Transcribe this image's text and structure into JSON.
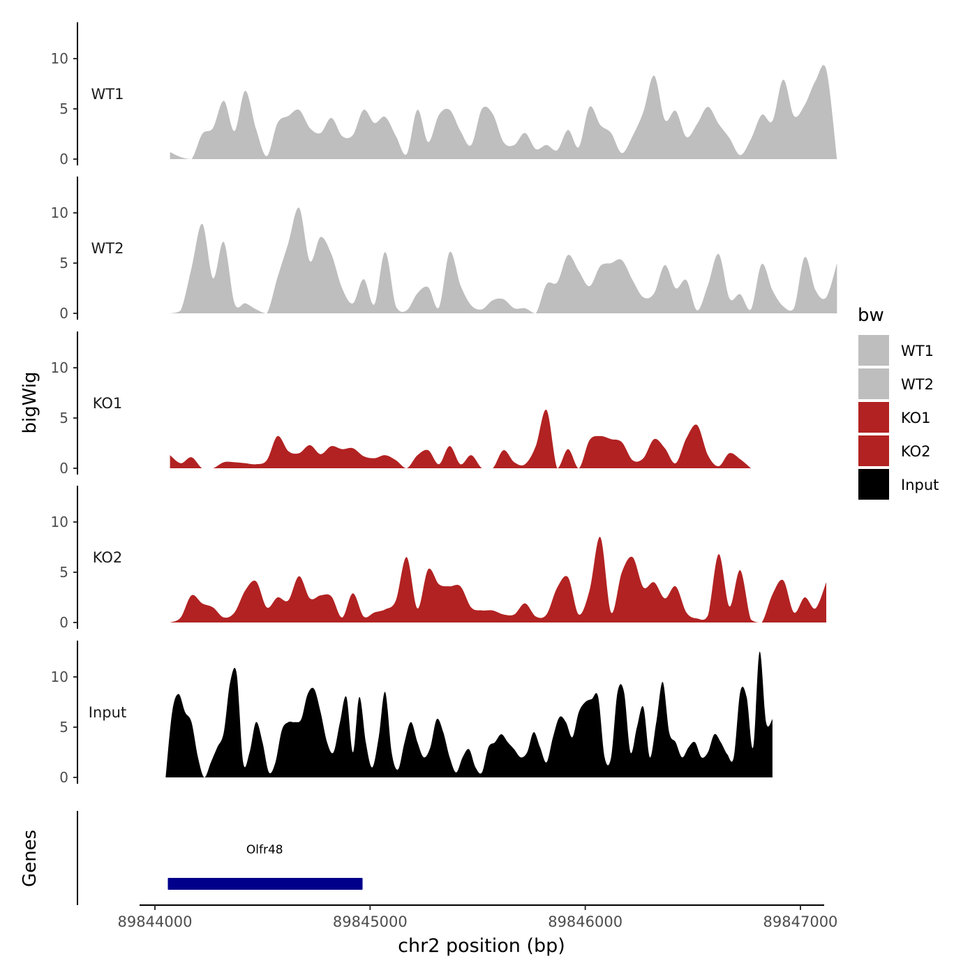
{
  "chart_data": {
    "type": "area",
    "xlabel": "chr2 position (bp)",
    "ylabel": "bigWig",
    "genes_label": "Genes",
    "xlim": [
      89843850,
      89847100
    ],
    "x_ticks": [
      89844000,
      89845000,
      89846000,
      89847000
    ],
    "ylim": [
      0,
      14
    ],
    "y_ticks": [
      0,
      5,
      10
    ],
    "legend": {
      "title": "bw",
      "position": "right",
      "entries": [
        {
          "label": "WT1",
          "color": "#bebebe"
        },
        {
          "label": "WT2",
          "color": "#bebebe"
        },
        {
          "label": "KO1",
          "color": "#b22222"
        },
        {
          "label": "KO2",
          "color": "#b22222"
        },
        {
          "label": "Input",
          "color": "#000000"
        }
      ]
    },
    "tracks": [
      {
        "name": "WT1",
        "color": "#bebebe",
        "x_start": 89844070,
        "x_step": 50,
        "values": [
          0.7,
          0.2,
          0,
          2.5,
          3.1,
          5.8,
          2.8,
          6.8,
          3.0,
          0.3,
          3.6,
          4.3,
          4.9,
          3.1,
          2.6,
          4.1,
          2.3,
          2.4,
          4.9,
          3.6,
          4.2,
          2.3,
          0.5,
          4.9,
          1.7,
          4.4,
          4.9,
          2.8,
          1.4,
          5.0,
          4.5,
          1.7,
          1.4,
          2.6,
          1.0,
          1.4,
          0.9,
          2.9,
          1.2,
          5.2,
          3.4,
          2.6,
          0.6,
          2.3,
          4.7,
          8.3,
          3.9,
          4.8,
          2.2,
          3.5,
          5.2,
          3.5,
          2.1,
          0.4,
          2.0,
          4.4,
          3.8,
          7.9,
          4.3,
          5.4,
          7.8,
          8.9,
          0
        ]
      },
      {
        "name": "WT2",
        "color": "#bebebe",
        "x_start": 89844070,
        "x_step": 50,
        "values": [
          0,
          0.3,
          4.5,
          8.9,
          3.5,
          7.1,
          1.0,
          1.0,
          0.4,
          0,
          3.6,
          7.0,
          10.5,
          5.2,
          7.6,
          5.9,
          2.5,
          1.0,
          3.4,
          0.9,
          6.1,
          0.7,
          0.3,
          2.0,
          2.6,
          0.6,
          6.1,
          2.8,
          0.8,
          0.4,
          1.3,
          1.4,
          0.5,
          0.5,
          0,
          2.9,
          3.1,
          5.8,
          4.2,
          2.7,
          4.7,
          5.0,
          5.3,
          3.3,
          1.6,
          2.0,
          4.8,
          2.5,
          3.3,
          0.3,
          2.8,
          5.9,
          1.5,
          1.9,
          0.4,
          4.9,
          2.3,
          0.7,
          0.5,
          5.6,
          2.3,
          1.6,
          5.0
        ]
      },
      {
        "name": "KO1",
        "color": "#b22222",
        "x_start": 89844070,
        "x_step": 50,
        "values": [
          1.3,
          0.5,
          1.1,
          0,
          0,
          0.6,
          0.6,
          0.5,
          0.4,
          0.8,
          3.2,
          1.7,
          1.5,
          2.3,
          1.4,
          2.2,
          1.9,
          2.0,
          1.2,
          1.0,
          1.3,
          0.8,
          0,
          1.3,
          1.8,
          0.4,
          2.2,
          0.4,
          1.3,
          0,
          0,
          1.8,
          0.6,
          0.4,
          2.2,
          5.8,
          0,
          1.9,
          0,
          2.8,
          3.2,
          2.9,
          2.6,
          0.8,
          1.0,
          2.9,
          2.0,
          0.5,
          3.0,
          4.3,
          1.3,
          0.2,
          1.5,
          0.9,
          0
        ]
      },
      {
        "name": "KO2",
        "color": "#b22222",
        "x_start": 89844070,
        "x_step": 50,
        "values": [
          0,
          0.5,
          2.7,
          1.9,
          1.5,
          0.5,
          1.0,
          3.2,
          4.1,
          1.5,
          2.5,
          2.2,
          4.6,
          2.4,
          2.7,
          2.6,
          0.5,
          2.9,
          0.6,
          1.0,
          1.3,
          2.2,
          6.5,
          1.4,
          5.3,
          3.8,
          3.6,
          3.6,
          1.5,
          1.2,
          1.2,
          0.8,
          0.8,
          1.9,
          0.6,
          0.8,
          3.5,
          4.5,
          0.8,
          3.2,
          8.5,
          1.0,
          5.0,
          6.5,
          3.5,
          4.0,
          2.4,
          3.6,
          1.0,
          0.4,
          0.7,
          6.8,
          1.6,
          5.2,
          0.3,
          0,
          2.8,
          4.2,
          1.0,
          2.5,
          1.4,
          4.0
        ]
      },
      {
        "name": "Input",
        "color": "#000000",
        "x_start": 89844050,
        "x_step": 30,
        "values": [
          0,
          6.5,
          8.3,
          6.5,
          5.5,
          2.0,
          0,
          1.5,
          3.0,
          4.5,
          9.5,
          10.3,
          1.5,
          2.5,
          5.5,
          3.5,
          0.5,
          1.5,
          4.7,
          5.5,
          5.5,
          5.8,
          8.3,
          8.8,
          6.5,
          3.5,
          2.5,
          5.5,
          8.0,
          2.5,
          8.0,
          3.5,
          1.0,
          4.0,
          8.5,
          2.5,
          0.8,
          3.5,
          5.5,
          3.5,
          2.0,
          3.0,
          5.8,
          4.5,
          2.0,
          0.5,
          2.0,
          2.8,
          1.0,
          0.5,
          3.0,
          3.5,
          4.3,
          3.5,
          2.8,
          2.0,
          2.5,
          4.5,
          3.0,
          1.5,
          4.0,
          6.0,
          5.5,
          4.0,
          6.5,
          7.5,
          7.8,
          8.0,
          2.0,
          2.0,
          8.5,
          8.5,
          2.5,
          5.0,
          7.0,
          2.0,
          5.5,
          9.5,
          4.5,
          3.5,
          2.0,
          3.0,
          3.5,
          2.0,
          2.5,
          4.3,
          3.5,
          2.3,
          2.0,
          8.5,
          8.0,
          3.0,
          12.5,
          5.5,
          5.8
        ]
      }
    ],
    "gene": {
      "name": "Olfr48",
      "start": 89844060,
      "end": 89844965,
      "color": "#00008b"
    }
  }
}
